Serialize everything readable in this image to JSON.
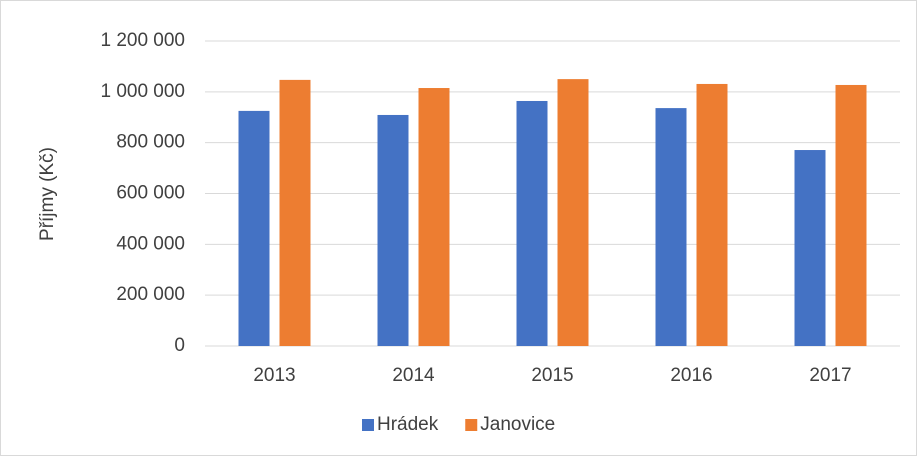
{
  "chart_data": {
    "type": "bar",
    "y_label": "Příjmy (Kč)",
    "categories": [
      "2013",
      "2014",
      "2015",
      "2016",
      "2017"
    ],
    "series": [
      {
        "name": "Hrádek",
        "color": "#4472c4",
        "values": [
          925000,
          909000,
          964000,
          936000,
          771000
        ]
      },
      {
        "name": "Janovice",
        "color": "#ed7d31",
        "values": [
          1047000,
          1015000,
          1050000,
          1031000,
          1027000
        ]
      }
    ],
    "ylim": [
      0,
      1200000
    ],
    "yticks": [
      0,
      {
        "value": 200000,
        "label": "200 000"
      },
      {
        "value": 400000,
        "label": "400 000"
      },
      {
        "value": 600000,
        "label": "600 000"
      },
      {
        "value": 800000,
        "label": "800 000"
      },
      {
        "value": 1000000,
        "label": "1 000 000"
      },
      {
        "value": 1200000,
        "label": "1 200 000"
      }
    ],
    "grid": true,
    "legend": "bottom"
  }
}
